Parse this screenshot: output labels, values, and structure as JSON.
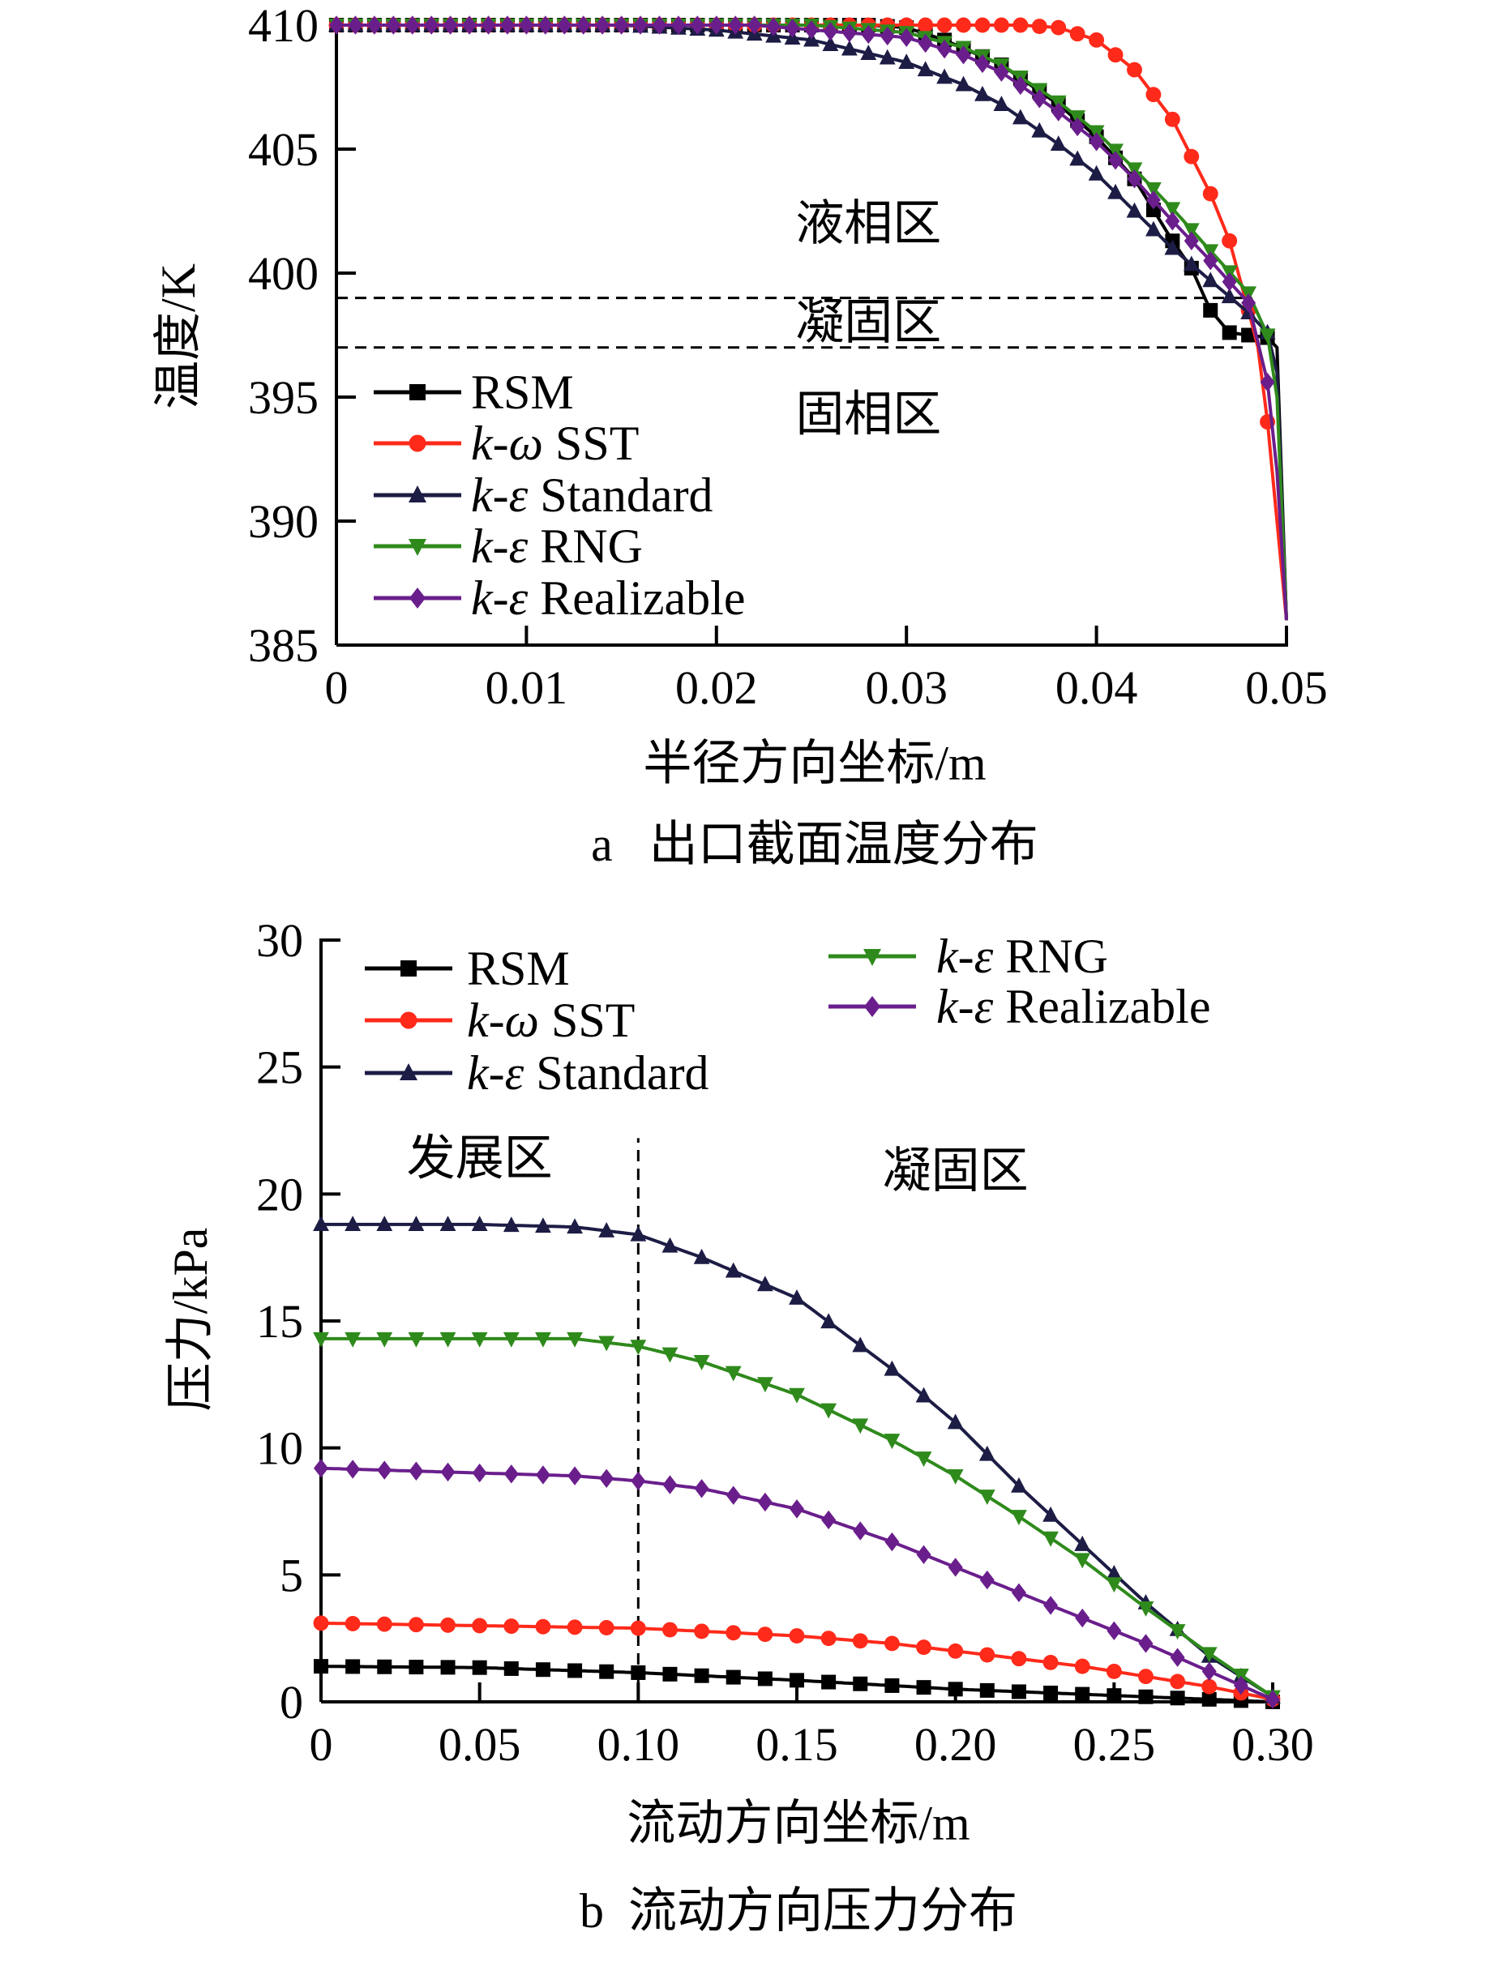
{
  "chart_data": [
    {
      "type": "line",
      "caption": "a   出口截面温度分布",
      "xlabel": "半径方向坐标/m",
      "ylabel": "温度/K",
      "xlim": [
        0,
        0.05
      ],
      "ylim": [
        385,
        410
      ],
      "xticks": [
        0,
        0.01,
        0.02,
        0.03,
        0.04,
        0.05
      ],
      "xtick_labels": [
        "0",
        "0.01",
        "0.02",
        "0.03",
        "0.04",
        "0.05"
      ],
      "yticks": [
        385,
        390,
        395,
        400,
        405,
        410
      ],
      "ytick_labels": [
        "385",
        "390",
        "395",
        "400",
        "405",
        "410"
      ],
      "marker_step": 0.001,
      "annotations": [
        {
          "text": "液相区",
          "x": 0.028,
          "y": 402
        },
        {
          "text": "凝固区",
          "x": 0.028,
          "y": 398
        },
        {
          "text": "固相区",
          "x": 0.028,
          "y": 394.3
        }
      ],
      "reference_lines": [
        {
          "orientation": "horizontal",
          "value": 399,
          "from": 0,
          "to": 0.048
        },
        {
          "orientation": "horizontal",
          "value": 397,
          "from": 0,
          "to": 0.048
        }
      ],
      "legend": "left-middle",
      "series": [
        {
          "name": "RSM",
          "prefix": "",
          "rest": "RSM",
          "color": "#000000",
          "marker": "square",
          "x": [
            0,
            0.028,
            0.03,
            0.032,
            0.035,
            0.038,
            0.04,
            0.042,
            0.044,
            0.045,
            0.046,
            0.047,
            0.048,
            0.049,
            0.0495,
            0.05
          ],
          "y": [
            410,
            410,
            409.9,
            409.4,
            408.4,
            406.8,
            405.5,
            403.8,
            401.3,
            400.2,
            398.5,
            397.6,
            397.5,
            397.4,
            397,
            386
          ]
        },
        {
          "name": "k-ω SST",
          "prefix": "k-ω",
          "rest": " SST",
          "color": "#ff2a1a",
          "marker": "circle",
          "x": [
            0,
            0.036,
            0.038,
            0.04,
            0.042,
            0.044,
            0.046,
            0.047,
            0.048,
            0.0485,
            0.049,
            0.0495,
            0.05
          ],
          "y": [
            410,
            410,
            409.9,
            409.4,
            408.2,
            406.2,
            403.2,
            401.3,
            398.5,
            397,
            394,
            390,
            386
          ]
        },
        {
          "name": "k-ε Standard",
          "prefix": "k-ε",
          "rest": " Standard",
          "color": "#1c1c45",
          "marker": "triangle-up",
          "x": [
            0,
            0.015,
            0.02,
            0.025,
            0.03,
            0.033,
            0.035,
            0.038,
            0.04,
            0.042,
            0.044,
            0.046,
            0.048,
            0.049,
            0.0495,
            0.05
          ],
          "y": [
            410,
            410,
            409.8,
            409.4,
            408.5,
            407.6,
            406.8,
            405.2,
            404,
            402.5,
            401,
            399.7,
            398.4,
            397.6,
            396,
            386
          ]
        },
        {
          "name": "k-ε RNG",
          "prefix": "k-ε",
          "rest": " RNG",
          "color": "#2f8a1c",
          "marker": "triangle-down",
          "x": [
            0,
            0.025,
            0.03,
            0.033,
            0.035,
            0.038,
            0.04,
            0.042,
            0.044,
            0.046,
            0.048,
            0.049,
            0.0495,
            0.05
          ],
          "y": [
            410,
            410,
            409.7,
            409.1,
            408.4,
            406.9,
            405.7,
            404.2,
            402.6,
            400.9,
            399.2,
            397.5,
            395,
            386
          ]
        },
        {
          "name": "k-ε Realizable",
          "prefix": "k-ε",
          "rest": " Realizable",
          "color": "#6a1e8c",
          "marker": "diamond",
          "x": [
            0,
            0.022,
            0.03,
            0.033,
            0.035,
            0.038,
            0.04,
            0.042,
            0.044,
            0.046,
            0.048,
            0.049,
            0.0495,
            0.05
          ],
          "y": [
            410,
            410,
            409.5,
            408.8,
            408.1,
            406.5,
            405.3,
            403.8,
            402.1,
            400.5,
            398.8,
            395.6,
            392,
            386
          ]
        }
      ]
    },
    {
      "type": "line",
      "caption": "b  流动方向压力分布",
      "xlabel": "流动方向坐标/m",
      "ylabel": "压力/kPa",
      "xlim": [
        0,
        0.3
      ],
      "ylim": [
        0,
        30
      ],
      "xticks": [
        0,
        0.05,
        0.1,
        0.15,
        0.2,
        0.25,
        0.3
      ],
      "xtick_labels": [
        "0",
        "0.05",
        "0.10",
        "0.15",
        "0.20",
        "0.25",
        "0.30"
      ],
      "yticks": [
        0,
        5,
        10,
        15,
        20,
        25,
        30
      ],
      "ytick_labels": [
        "0",
        "5",
        "10",
        "15",
        "20",
        "25",
        "30"
      ],
      "marker_step": 0.01,
      "annotations": [
        {
          "text": "发展区",
          "x": 0.05,
          "y": 21.4
        },
        {
          "text": "凝固区",
          "x": 0.2,
          "y": 20.9
        }
      ],
      "reference_lines": [
        {
          "orientation": "vertical",
          "value": 0.1,
          "from": 0,
          "to": 22.2
        }
      ],
      "legend": "top (two columns)",
      "series": [
        {
          "name": "RSM",
          "prefix": "",
          "rest": "RSM",
          "color": "#000000",
          "marker": "square",
          "x": [
            0,
            0.05,
            0.1,
            0.15,
            0.2,
            0.25,
            0.28,
            0.3
          ],
          "y": [
            1.4,
            1.35,
            1.15,
            0.85,
            0.5,
            0.25,
            0.1,
            0
          ]
        },
        {
          "name": "k-ω SST",
          "prefix": "k-ω",
          "rest": " SST",
          "color": "#ff2a1a",
          "marker": "circle",
          "x": [
            0,
            0.05,
            0.1,
            0.15,
            0.18,
            0.2,
            0.22,
            0.24,
            0.26,
            0.28,
            0.3
          ],
          "y": [
            3.1,
            3.0,
            2.9,
            2.6,
            2.3,
            2.0,
            1.7,
            1.4,
            1.0,
            0.6,
            0.1
          ]
        },
        {
          "name": "k-ε Standard",
          "prefix": "k-ε",
          "rest": " Standard",
          "color": "#1c1c45",
          "marker": "triangle-up",
          "x": [
            0,
            0.05,
            0.08,
            0.1,
            0.12,
            0.15,
            0.18,
            0.2,
            0.22,
            0.24,
            0.26,
            0.28,
            0.3
          ],
          "y": [
            18.8,
            18.8,
            18.7,
            18.4,
            17.5,
            15.9,
            13.1,
            11,
            8.5,
            6.2,
            3.9,
            1.8,
            0.2
          ]
        },
        {
          "name": "k-ε RNG",
          "prefix": "k-ε",
          "rest": " RNG",
          "color": "#2f8a1c",
          "marker": "triangle-down",
          "x": [
            0,
            0.08,
            0.1,
            0.12,
            0.15,
            0.18,
            0.2,
            0.22,
            0.24,
            0.26,
            0.28,
            0.3
          ],
          "y": [
            14.3,
            14.3,
            14.0,
            13.4,
            12.1,
            10.3,
            8.9,
            7.3,
            5.6,
            3.7,
            1.9,
            0.2
          ]
        },
        {
          "name": "k-ε Realizable",
          "prefix": "k-ε",
          "rest": " Realizable",
          "color": "#6a1e8c",
          "marker": "diamond",
          "x": [
            0,
            0.08,
            0.1,
            0.12,
            0.15,
            0.18,
            0.2,
            0.22,
            0.24,
            0.26,
            0.28,
            0.3
          ],
          "y": [
            9.2,
            8.9,
            8.7,
            8.4,
            7.6,
            6.3,
            5.3,
            4.3,
            3.3,
            2.3,
            1.2,
            0.1
          ]
        }
      ]
    }
  ]
}
